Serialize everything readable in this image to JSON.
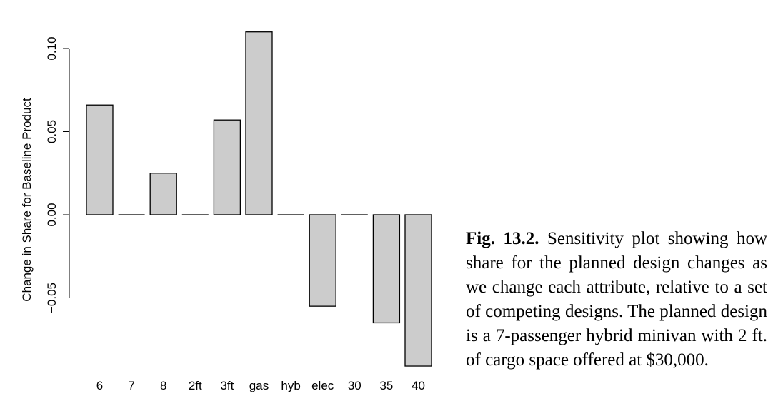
{
  "chart_data": {
    "type": "bar",
    "categories": [
      "6",
      "7",
      "8",
      "2ft",
      "3ft",
      "gas",
      "hyb",
      "elec",
      "30",
      "35",
      "40"
    ],
    "values": [
      0.066,
      0.0,
      0.025,
      0.0,
      0.057,
      0.11,
      0.0,
      -0.055,
      0.0,
      -0.065,
      -0.091
    ],
    "ylabel": "Change in Share for Baseline Product",
    "xlabel": "",
    "yticks": [
      -0.05,
      0.0,
      0.05,
      0.1
    ],
    "ytick_labels": [
      "−0.05",
      "0.00",
      "0.05",
      "0.10"
    ],
    "ylim": [
      -0.091,
      0.11
    ],
    "grid": false,
    "bar_color": "#cccccc",
    "edge_color": "#000000"
  },
  "caption": {
    "label": "Fig. 13.2.",
    "text": "Sensitivity plot showing how share for the planned design changes as we change each attribute, relative to a set of competing designs. The planned design is a 7-passenger hybrid minivan with 2 ft. of cargo space offered at $30,000."
  }
}
